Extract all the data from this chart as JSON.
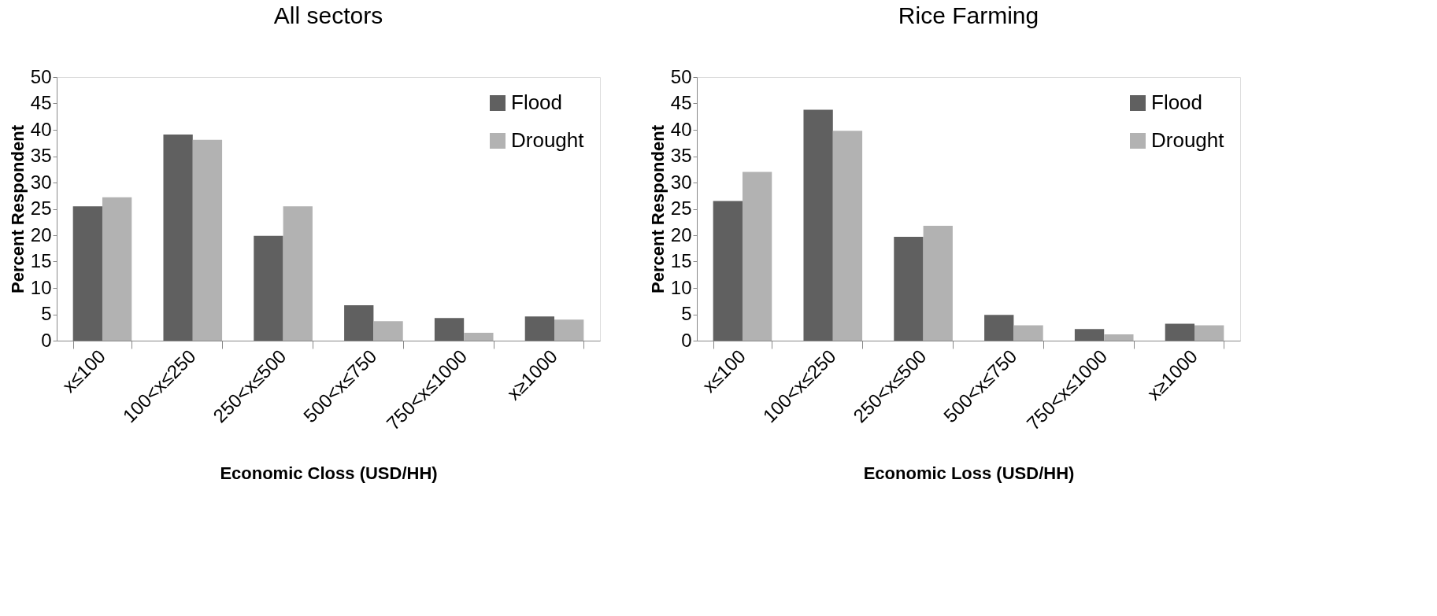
{
  "chart_data": [
    {
      "type": "bar",
      "title": "All sectors",
      "xlabel": "Economic Closs (USD/HH)",
      "ylabel": "Percent Respondent",
      "categories": [
        "x≤100",
        "100<x≤250",
        "250<x≤500",
        "500<x≤750",
        "750<x≤1000",
        "x≥1000"
      ],
      "series": [
        {
          "name": "Flood",
          "color": "#606060",
          "values": [
            25.5,
            39.1,
            19.9,
            6.7,
            4.3,
            4.6
          ]
        },
        {
          "name": "Drought",
          "color": "#b2b2b2",
          "values": [
            27.2,
            38.1,
            25.5,
            3.7,
            1.5,
            4.0
          ]
        }
      ],
      "ylim": [
        0,
        50
      ],
      "yticks": [
        0,
        5,
        10,
        15,
        20,
        25,
        30,
        35,
        40,
        45,
        50
      ],
      "grid": false,
      "legend": "top right"
    },
    {
      "type": "bar",
      "title": "Rice Farming",
      "xlabel": "Economic Loss (USD/HH)",
      "ylabel": "Percent Respondent",
      "categories": [
        "x≤100",
        "100<x≤250",
        "250<x≤500",
        "500<x≤750",
        "750<x≤1000",
        "x≥1000"
      ],
      "series": [
        {
          "name": "Flood",
          "color": "#606060",
          "values": [
            26.5,
            43.8,
            19.7,
            4.9,
            2.2,
            3.2
          ]
        },
        {
          "name": "Drought",
          "color": "#b2b2b2",
          "values": [
            32.0,
            39.8,
            21.8,
            2.9,
            1.2,
            2.9
          ]
        }
      ],
      "ylim": [
        0,
        50
      ],
      "yticks": [
        0,
        5,
        10,
        15,
        20,
        25,
        30,
        35,
        40,
        45,
        50
      ],
      "grid": false,
      "legend": "top right"
    }
  ]
}
